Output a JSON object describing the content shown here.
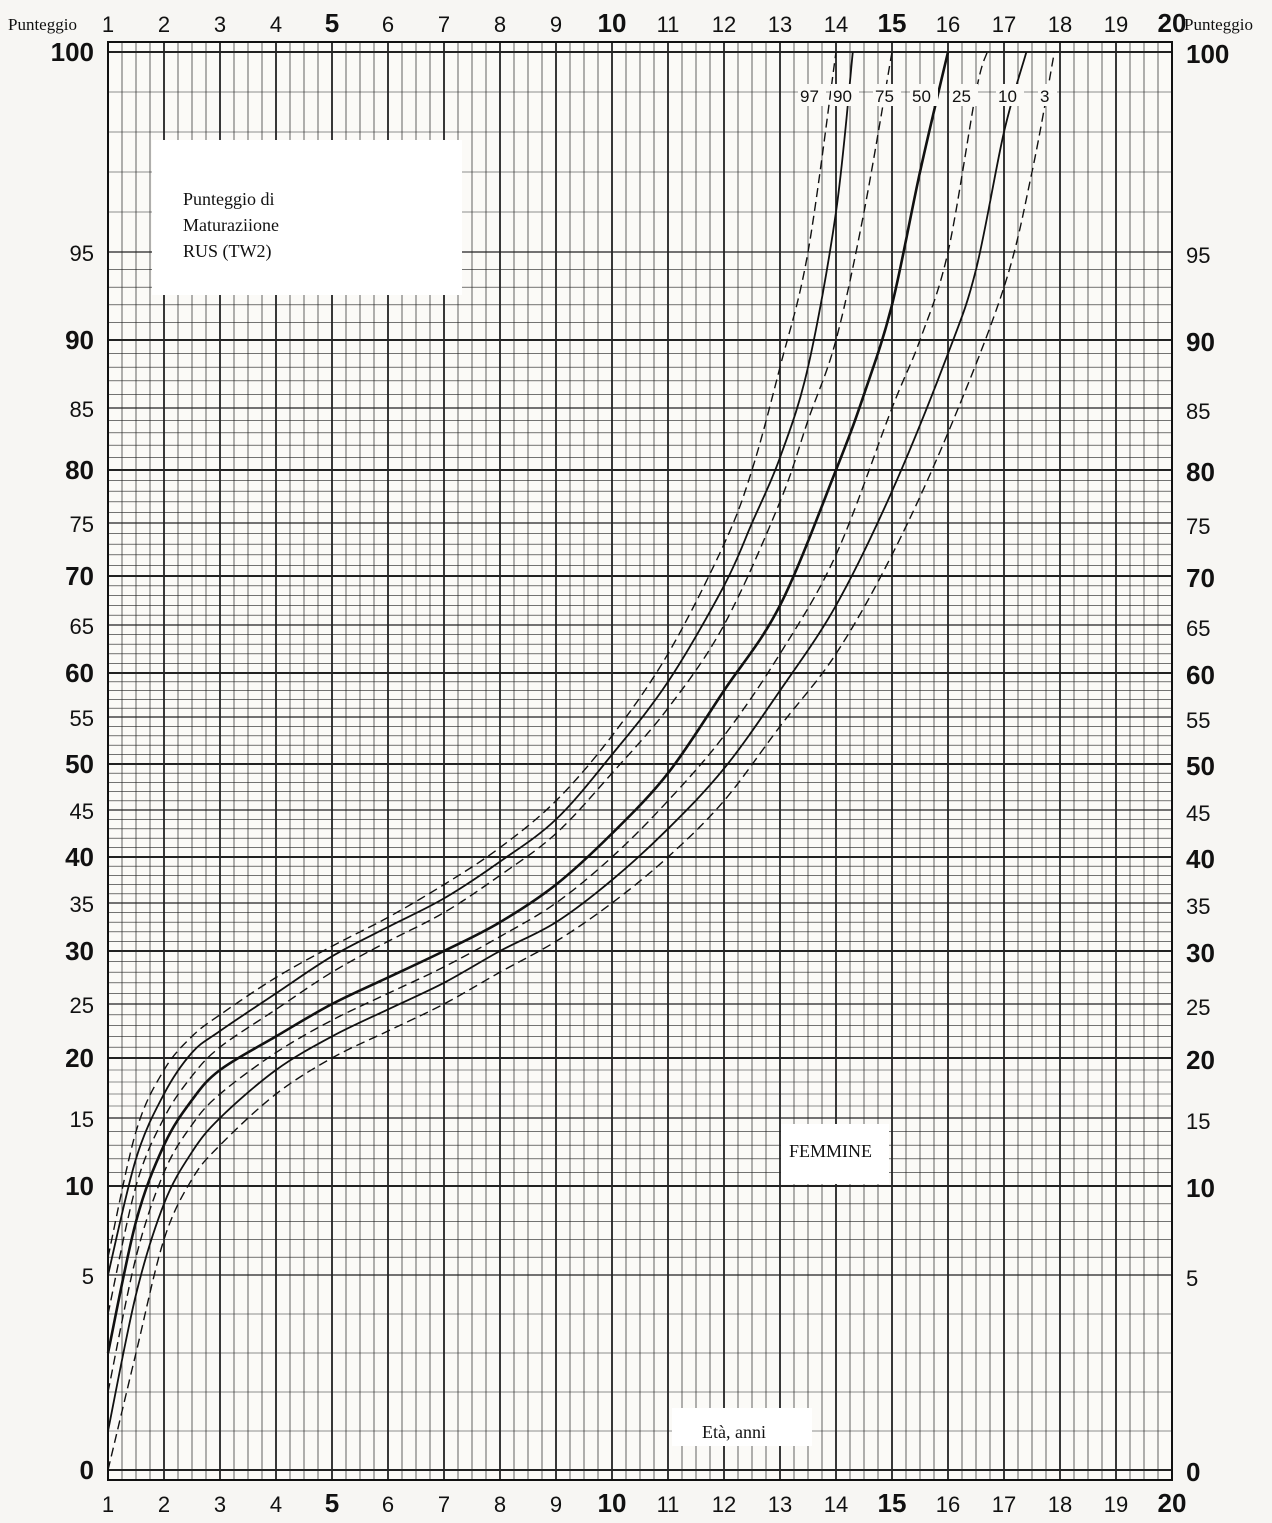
{
  "chart_data": {
    "type": "line",
    "title": "Punteggio di Maturaziione RUS (TW2)",
    "title_lines": [
      "Punteggio di",
      "Maturaziione",
      "RUS (TW2)"
    ],
    "ylabel": "Punteggio",
    "xlabel": "Età, anni",
    "group_label": "FEMMINE",
    "xlim": [
      1,
      20
    ],
    "x_ticks": [
      1,
      2,
      3,
      4,
      5,
      6,
      7,
      8,
      9,
      10,
      11,
      12,
      13,
      14,
      15,
      16,
      17,
      18,
      19,
      20
    ],
    "x_bold_ticks": [
      5,
      10,
      15,
      20
    ],
    "y_ticks": [
      0,
      5,
      10,
      15,
      20,
      25,
      30,
      35,
      40,
      45,
      50,
      55,
      60,
      65,
      70,
      75,
      80,
      85,
      90,
      95,
      100
    ],
    "y_bold_ticks": [
      0,
      10,
      20,
      30,
      40,
      50,
      60,
      70,
      80,
      90,
      100
    ],
    "y_scale": "non-linear (expanded above 60)",
    "grid": true,
    "series": [
      {
        "name": "97",
        "style": "dashed",
        "x": [
          1,
          1.5,
          2,
          2.5,
          3,
          4,
          5,
          6,
          7,
          8,
          9,
          10,
          11,
          12,
          12.5,
          13,
          13.5,
          14
        ],
        "y": [
          6,
          14,
          19,
          22,
          24,
          27.5,
          30.5,
          33.5,
          37,
          41,
          46,
          53,
          62,
          73,
          80,
          88,
          95,
          100
        ]
      },
      {
        "name": "90",
        "style": "solid",
        "x": [
          1,
          1.5,
          2,
          2.5,
          3,
          4,
          5,
          6,
          7,
          8,
          9,
          10,
          11,
          12,
          12.5,
          13,
          13.5,
          14,
          14.3
        ],
        "y": [
          5,
          12,
          17,
          20.5,
          22.5,
          26,
          29.5,
          32.5,
          35.5,
          39.5,
          44,
          51,
          59,
          69,
          75,
          81,
          88,
          96,
          100
        ]
      },
      {
        "name": "75",
        "style": "dashed",
        "x": [
          1,
          1.5,
          2,
          2.5,
          3,
          4,
          5,
          6,
          7,
          8,
          9,
          10,
          11,
          12,
          13,
          13.5,
          14,
          14.5,
          15
        ],
        "y": [
          4,
          10,
          15,
          18.5,
          21,
          24.5,
          28,
          31,
          34,
          38,
          42.5,
          49,
          56,
          65,
          77,
          84,
          90,
          96,
          100
        ]
      },
      {
        "name": "50",
        "style": "solid",
        "x": [
          1,
          1.5,
          2,
          2.5,
          3,
          4,
          5,
          6,
          7,
          8,
          9,
          10,
          11,
          12,
          13,
          14,
          14.5,
          15,
          15.5,
          16
        ],
        "y": [
          3,
          8,
          13,
          16.5,
          19,
          22,
          25,
          27.5,
          30,
          33,
          37,
          42.5,
          49,
          58,
          67,
          80,
          86,
          92,
          97,
          100
        ]
      },
      {
        "name": "25",
        "style": "dashed",
        "x": [
          1,
          1.5,
          2,
          2.5,
          3,
          4,
          5,
          6,
          7,
          8,
          9,
          10,
          11,
          12,
          13,
          14,
          15,
          15.5,
          16,
          16.5,
          16.7
        ],
        "y": [
          2,
          6,
          11,
          14.5,
          17,
          20.5,
          23.5,
          26,
          28.5,
          31.5,
          35,
          40,
          46,
          53,
          62,
          72,
          85,
          90,
          95,
          99,
          100
        ]
      },
      {
        "name": "10",
        "style": "solid",
        "x": [
          1,
          1.5,
          2,
          2.5,
          3,
          4,
          5,
          6,
          7,
          8,
          9,
          10,
          11,
          12,
          13,
          14,
          15,
          16,
          16.5,
          17,
          17.4
        ],
        "y": [
          1,
          4.5,
          9,
          12.5,
          15,
          19,
          22,
          24.5,
          27,
          30,
          33,
          37.5,
          43,
          49.5,
          58,
          67,
          78,
          89,
          94,
          98,
          100
        ]
      },
      {
        "name": "3",
        "style": "dashed",
        "x": [
          1,
          1.5,
          2,
          2.5,
          3,
          4,
          5,
          6,
          7,
          8,
          9,
          10,
          11,
          12,
          13,
          14,
          15,
          16,
          17,
          17.5,
          17.9
        ],
        "y": [
          0,
          3,
          7,
          10.5,
          13,
          17,
          20,
          22.5,
          25,
          28,
          31,
          35,
          40,
          46,
          54,
          62,
          72,
          83,
          93,
          97,
          100
        ]
      }
    ]
  }
}
